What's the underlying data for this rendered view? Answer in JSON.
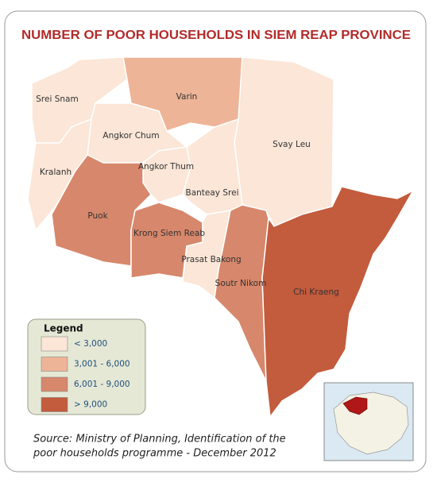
{
  "title": "NUMBER OF POOR HOUSEHOLDS IN SIEM REAP PROVINCE",
  "districts": [
    {
      "name": "Srei Snam",
      "color": "#fbe6d7"
    },
    {
      "name": "Varin",
      "color": "#eeb497"
    },
    {
      "name": "Svay Leu",
      "color": "#fbe6d7"
    },
    {
      "name": "Angkor Chum",
      "color": "#fbe6d7"
    },
    {
      "name": "Kralanh",
      "color": "#fbe6d7"
    },
    {
      "name": "Angkor Thum",
      "color": "#fbe6d7"
    },
    {
      "name": "Banteay Srei",
      "color": "#fbe6d7"
    },
    {
      "name": "Puok",
      "color": "#d7876b"
    },
    {
      "name": "Krong Siem Reab",
      "color": "#d7876b"
    },
    {
      "name": "Prasat Bakong",
      "color": "#fbe6d7"
    },
    {
      "name": "Soutr Nikom",
      "color": "#d7876b"
    },
    {
      "name": "Chi Kraeng",
      "color": "#c35b3d"
    }
  ],
  "legend": {
    "title": "Legend",
    "items": [
      {
        "label": "< 3,000",
        "color": "#fbe6d7"
      },
      {
        "label": "3,001 - 6,000",
        "color": "#eeb497"
      },
      {
        "label": "6,001 - 9,000",
        "color": "#d7876b"
      },
      {
        "label": "> 9,000",
        "color": "#c35b3d"
      }
    ]
  },
  "source": [
    "Source: Ministry of Planning, Identification of the",
    "poor households programme - December 2012"
  ]
}
